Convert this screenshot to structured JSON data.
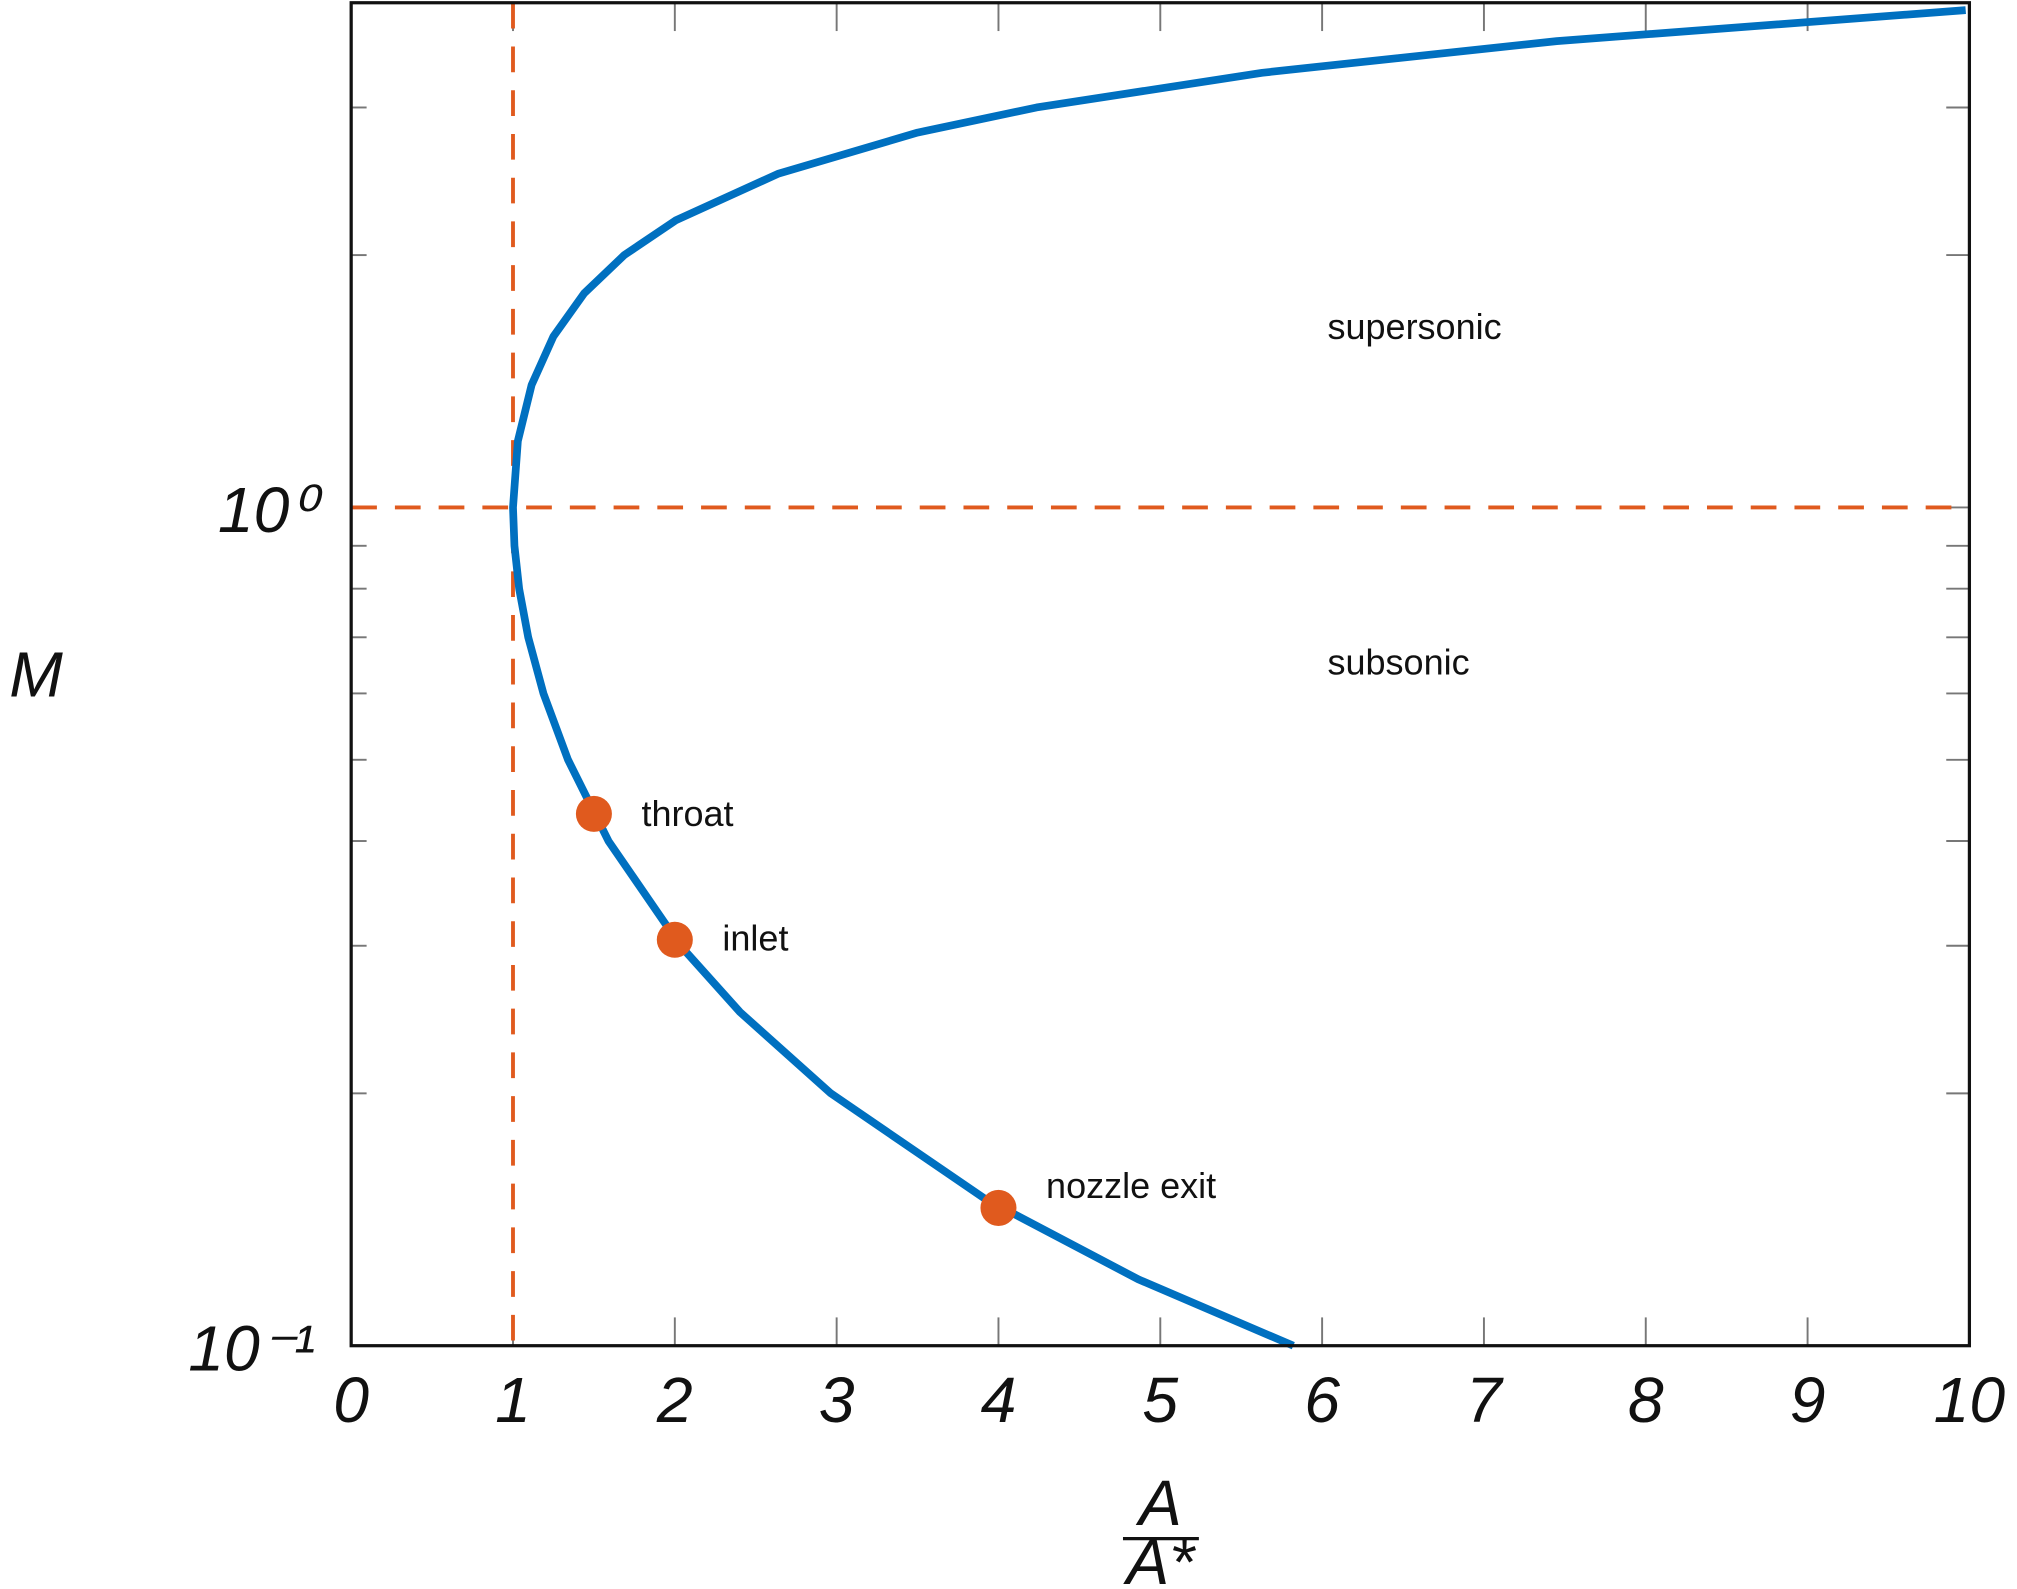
{
  "chart_data": {
    "type": "line",
    "xlabel": {
      "numerator": "A",
      "denominator": "A*"
    },
    "ylabel": "M",
    "xlim": [
      0,
      10
    ],
    "xticks": [
      0,
      1,
      2,
      3,
      4,
      5,
      6,
      7,
      8,
      9,
      10
    ],
    "ylim": [
      0.1,
      4
    ],
    "ylog": true,
    "yticks": [
      {
        "value": 0.1,
        "label": "10⁻¹"
      },
      {
        "value": 1,
        "label": "10⁰"
      }
    ],
    "yminor_ticks": [
      0.2,
      0.3,
      0.4,
      0.5,
      0.6,
      0.7,
      0.8,
      0.9,
      2,
      3
    ],
    "series": [
      {
        "color": "#0070c0",
        "x": [
          5.822,
          4.864,
          3.91,
          2.964,
          2.403,
          2.035,
          1.59,
          1.34,
          1.188,
          1.094,
          1.038,
          1.009,
          1,
          1.03,
          1.115,
          1.25,
          1.439,
          1.6875,
          2.005,
          2.637,
          3.5,
          4.235,
          5.629,
          7.45,
          9.977
        ],
        "values": [
          0.1,
          0.12,
          0.15,
          0.2,
          0.25,
          0.3,
          0.4,
          0.5,
          0.6,
          0.7,
          0.8,
          0.9,
          1,
          1.2,
          1.4,
          1.6,
          1.8,
          2.0,
          2.2,
          2.5,
          2.8,
          3.0,
          3.3,
          3.6,
          3.92
        ]
      }
    ],
    "points": {
      "color": "#e05a1e",
      "x": [
        1.5,
        2,
        4
      ],
      "values": [
        0.431,
        0.305,
        0.146
      ],
      "labels": [
        "throat",
        "inlet",
        "nozzle exit"
      ]
    },
    "reference_lines": {
      "color": "#e05a1e",
      "x": [
        1
      ],
      "y": [
        1
      ]
    },
    "annotations": [
      "supersonic",
      "subsonic"
    ]
  }
}
